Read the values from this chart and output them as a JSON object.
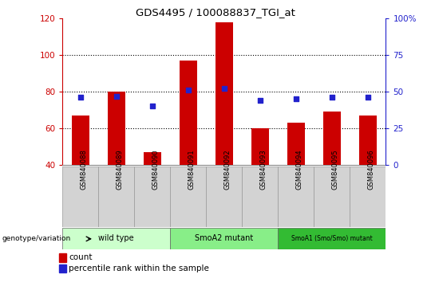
{
  "title": "GDS4495 / 100088837_TGI_at",
  "samples": [
    "GSM840088",
    "GSM840089",
    "GSM840090",
    "GSM840091",
    "GSM840092",
    "GSM840093",
    "GSM840094",
    "GSM840095",
    "GSM840096"
  ],
  "counts": [
    67,
    80,
    47,
    97,
    118,
    60,
    63,
    69,
    67
  ],
  "percentile_ranks": [
    46,
    47,
    40,
    51,
    52,
    44,
    45,
    46,
    46
  ],
  "bar_color": "#cc0000",
  "dot_color": "#2222cc",
  "ylim_left": [
    40,
    120
  ],
  "ylim_right": [
    0,
    100
  ],
  "yticks_left": [
    40,
    60,
    80,
    100,
    120
  ],
  "yticks_right": [
    0,
    25,
    50,
    75,
    100
  ],
  "groups": [
    {
      "label": "wild type",
      "start": 0,
      "end": 3,
      "color": "#ccffcc"
    },
    {
      "label": "SmoA2 mutant",
      "start": 3,
      "end": 6,
      "color": "#88ee88"
    },
    {
      "label": "SmoA1 (Smo/Smo) mutant",
      "start": 6,
      "end": 9,
      "color": "#33bb33"
    }
  ],
  "genotype_label": "genotype/variation",
  "legend_count_label": "count",
  "legend_percentile_label": "percentile rank within the sample",
  "left_axis_color": "#cc0000",
  "right_axis_color": "#2222cc",
  "bar_width": 0.5
}
